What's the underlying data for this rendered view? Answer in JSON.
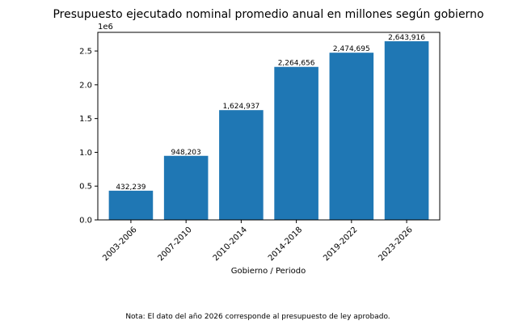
{
  "chart_data": {
    "type": "bar",
    "title": "Presupuesto ejecutado nominal promedio anual en millones según gobierno",
    "xlabel": "Gobierno / Periodo",
    "ylabel": "",
    "y_scale_label": "1e6",
    "y_scale_factor": 1000000,
    "categories": [
      "2003-2006",
      "2007-2010",
      "2010-2014",
      "2014-2018",
      "2019-2022",
      "2023-2026"
    ],
    "values": [
      432239,
      948203,
      1624937,
      2264656,
      2474695,
      2643916
    ],
    "data_labels": [
      "432,239",
      "948,203",
      "1,624,937",
      "2,264,656",
      "2,474,695",
      "2,643,916"
    ],
    "ylim": [
      0,
      2776112
    ],
    "yticks": [
      0,
      500000,
      1000000,
      1500000,
      2000000,
      2500000
    ],
    "ytick_labels": [
      "0.0",
      "0.5",
      "1.0",
      "1.5",
      "2.0",
      "2.5"
    ],
    "bar_color": "#1f77b4",
    "grid": false,
    "note": "Nota: El dato del año 2026 corresponde al presupuesto de ley aprobado."
  }
}
